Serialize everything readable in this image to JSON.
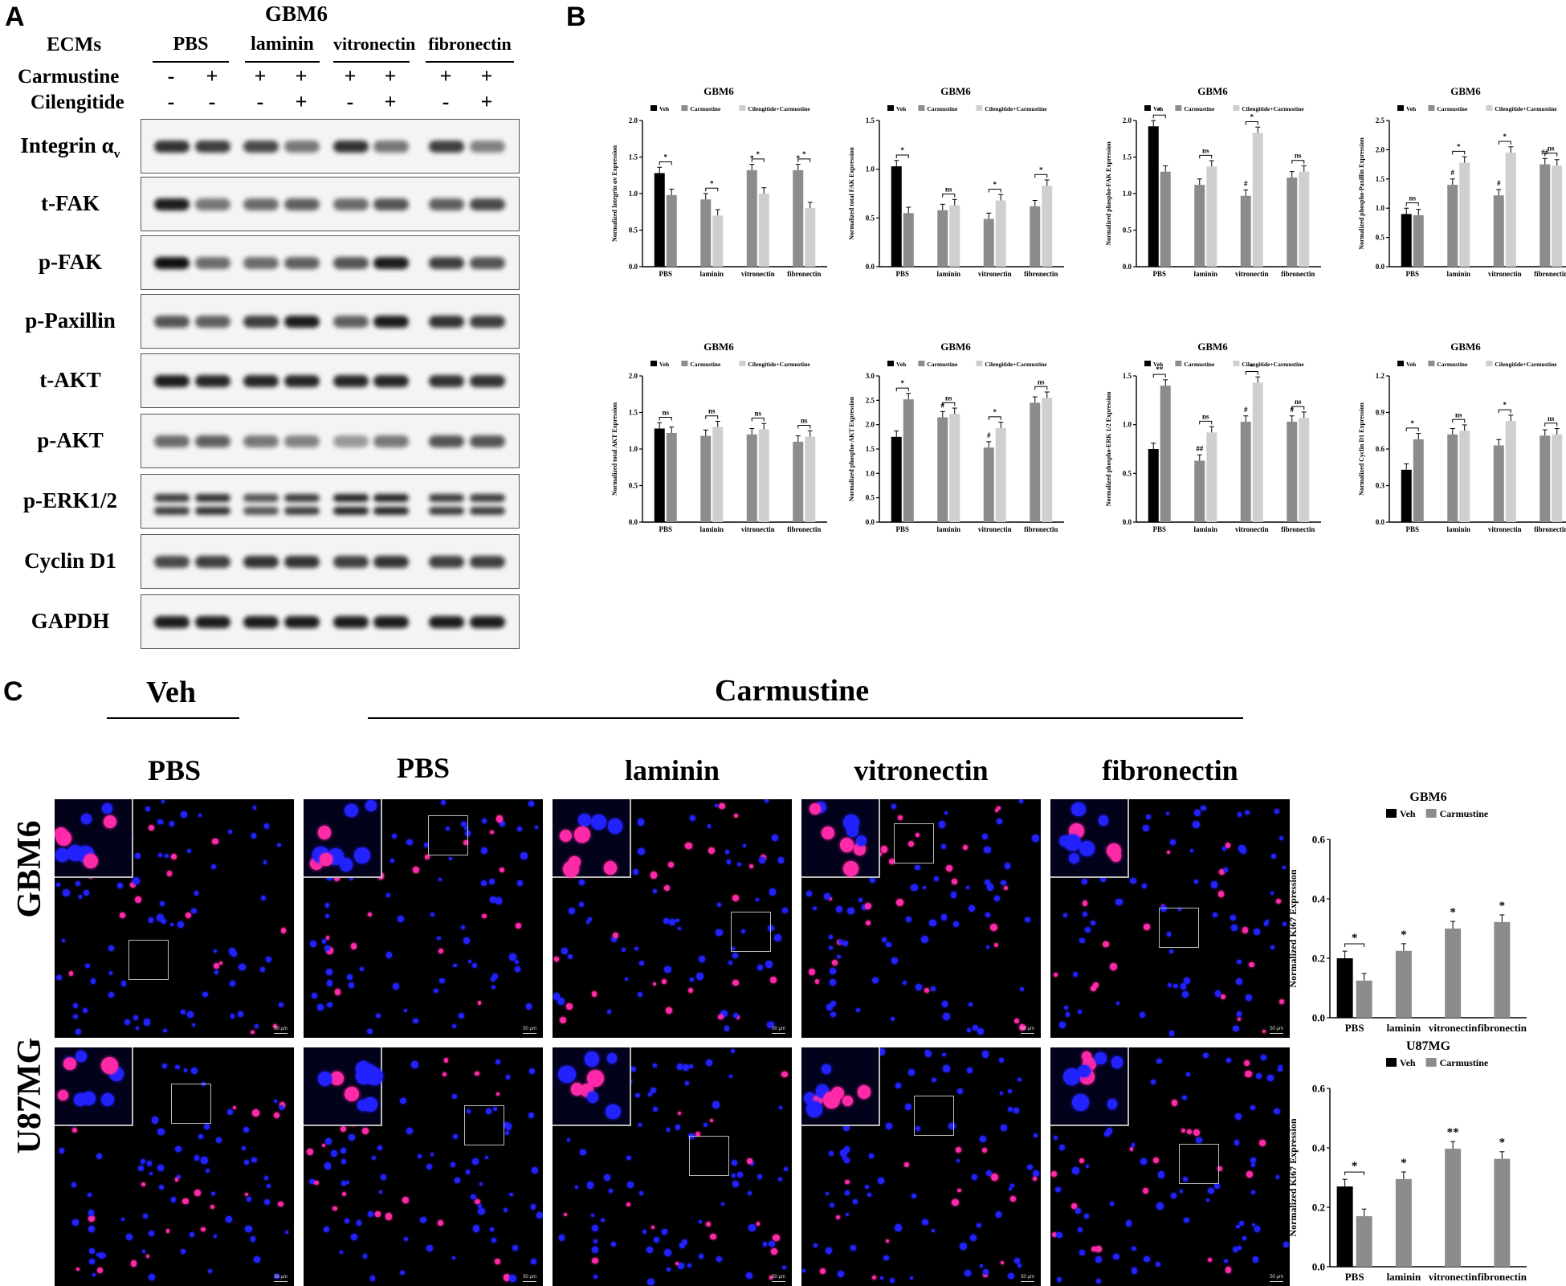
{
  "panels": {
    "a": "A",
    "b": "B",
    "c": "C"
  },
  "western": {
    "title": "GBM6",
    "ecm_label": "ECMs",
    "ecms": [
      "PBS",
      "laminin",
      "vitronectin",
      "fibronectin"
    ],
    "carmustine_label": "Carmustine",
    "carmustine": [
      "-",
      "+",
      "+",
      "+",
      "+",
      "+",
      "+",
      "+"
    ],
    "cilengitide_label": "Cilengitide",
    "cilengitide": [
      "-",
      "-",
      "-",
      "+",
      "-",
      "+",
      "-",
      "+"
    ],
    "rows": [
      {
        "label": "Integrin α",
        "sub": "v",
        "bands": [
          0.85,
          0.8,
          0.75,
          0.55,
          0.85,
          0.55,
          0.8,
          0.5
        ]
      },
      {
        "label": "t-FAK",
        "bands": [
          0.95,
          0.55,
          0.6,
          0.65,
          0.6,
          0.7,
          0.65,
          0.75
        ]
      },
      {
        "label": "p-FAK",
        "bands": [
          1.0,
          0.6,
          0.6,
          0.65,
          0.7,
          0.95,
          0.8,
          0.7
        ]
      },
      {
        "label": "p-Paxillin",
        "bands": [
          0.7,
          0.65,
          0.8,
          0.95,
          0.65,
          0.95,
          0.85,
          0.8
        ]
      },
      {
        "label": "t-AKT",
        "bands": [
          0.95,
          0.9,
          0.9,
          0.9,
          0.9,
          0.9,
          0.85,
          0.85
        ]
      },
      {
        "label": "p-AKT",
        "bands": [
          0.6,
          0.65,
          0.55,
          0.5,
          0.4,
          0.55,
          0.7,
          0.7
        ]
      },
      {
        "label": "p-ERK1/2",
        "bands": [
          0.8,
          0.85,
          0.7,
          0.8,
          0.9,
          0.9,
          0.8,
          0.8
        ]
      },
      {
        "label": "Cyclin D1",
        "bands": [
          0.75,
          0.8,
          0.85,
          0.85,
          0.8,
          0.85,
          0.8,
          0.8
        ]
      },
      {
        "label": "GAPDH",
        "bands": [
          0.95,
          0.95,
          0.95,
          0.95,
          0.95,
          0.95,
          0.95,
          0.95
        ]
      }
    ]
  },
  "chart_data": [
    {
      "type": "bar",
      "title": "GBM6",
      "ylabel": "Normalized Integrin αv Expression",
      "ylim": [
        0,
        2.0
      ],
      "yticks": [
        "0.0",
        "0.5",
        "1.0",
        "1.5",
        "2.0"
      ],
      "categories": [
        "PBS",
        "laminin",
        "vitronectin",
        "fibronectin"
      ],
      "series": [
        {
          "name": "Veh",
          "values": [
            1.28,
            null,
            null,
            null
          ]
        },
        {
          "name": "Carmustine",
          "values": [
            0.98,
            0.92,
            1.32,
            1.32
          ]
        },
        {
          "name": "Cilengitide+Carmustine",
          "values": [
            null,
            0.7,
            1.0,
            0.8
          ]
        }
      ],
      "annotations": [
        {
          "cat": 0,
          "text": "*",
          "from": 0,
          "to": 1
        },
        {
          "cat": 1,
          "text": "*",
          "from": 1,
          "to": 2
        },
        {
          "cat": 2,
          "text": "*",
          "from": 1,
          "to": 2
        },
        {
          "cat": 3,
          "text": "*",
          "from": 1,
          "to": 2
        },
        {
          "cat": 2,
          "text": "*",
          "over": 1
        },
        {
          "cat": 3,
          "text": "*",
          "over": 1
        }
      ]
    },
    {
      "type": "bar",
      "title": "GBM6",
      "ylabel": "Normalized total FAK Expression",
      "ylim": [
        0,
        1.5
      ],
      "yticks": [
        "0.0",
        "0.5",
        "1.0",
        "1.5"
      ],
      "categories": [
        "PBS",
        "laminin",
        "vitronectin",
        "fibronectin"
      ],
      "series": [
        {
          "name": "Veh",
          "values": [
            1.03,
            null,
            null,
            null
          ]
        },
        {
          "name": "Carmustine",
          "values": [
            0.55,
            0.58,
            0.49,
            0.62
          ]
        },
        {
          "name": "Cilengitide+Carmustine",
          "values": [
            null,
            0.63,
            0.68,
            0.83
          ]
        }
      ],
      "annotations": [
        {
          "cat": 0,
          "text": "*",
          "from": 0,
          "to": 1
        },
        {
          "cat": 1,
          "text": "ns",
          "from": 1,
          "to": 2
        },
        {
          "cat": 2,
          "text": "*",
          "from": 1,
          "to": 2
        },
        {
          "cat": 3,
          "text": "*",
          "from": 1,
          "to": 2
        }
      ]
    },
    {
      "type": "bar",
      "title": "GBM6",
      "ylabel": "Normalized phospho-FAK Expression",
      "ylim": [
        0,
        2.0
      ],
      "yticks": [
        "0.0",
        "0.5",
        "1.0",
        "1.5",
        "2.0"
      ],
      "categories": [
        "PBS",
        "laminin",
        "vitronectin",
        "fibronectin"
      ],
      "series": [
        {
          "name": "Veh",
          "values": [
            1.92,
            null,
            null,
            null
          ]
        },
        {
          "name": "Carmustine",
          "values": [
            1.3,
            1.12,
            0.97,
            1.22
          ]
        },
        {
          "name": "Cilengitide+Carmustine",
          "values": [
            null,
            1.37,
            1.83,
            1.3
          ]
        }
      ],
      "annotations": [
        {
          "cat": 0,
          "text": "*",
          "from": 0,
          "to": 1
        },
        {
          "cat": 1,
          "text": "ns",
          "from": 1,
          "to": 2
        },
        {
          "cat": 2,
          "text": "*",
          "from": 1,
          "to": 2
        },
        {
          "cat": 3,
          "text": "ns",
          "from": 1,
          "to": 2
        },
        {
          "cat": 2,
          "text": "#",
          "over": 1
        }
      ]
    },
    {
      "type": "bar",
      "title": "GBM6",
      "ylabel": "Normalized phospho-Paxillin Expression",
      "ylim": [
        0,
        2.5
      ],
      "yticks": [
        "0.0",
        "0.5",
        "1.0",
        "1.5",
        "2.0",
        "2.5"
      ],
      "categories": [
        "PBS",
        "laminin",
        "vitronectin",
        "fibronectin"
      ],
      "series": [
        {
          "name": "Veh",
          "values": [
            0.9,
            null,
            null,
            null
          ]
        },
        {
          "name": "Carmustine",
          "values": [
            0.88,
            1.4,
            1.22,
            1.75
          ]
        },
        {
          "name": "Cilengitide+Carmustine",
          "values": [
            null,
            1.78,
            1.95,
            1.73
          ]
        }
      ],
      "annotations": [
        {
          "cat": 0,
          "text": "ns",
          "from": 0,
          "to": 1
        },
        {
          "cat": 1,
          "text": "*",
          "from": 1,
          "to": 2
        },
        {
          "cat": 2,
          "text": "*",
          "from": 1,
          "to": 2
        },
        {
          "cat": 3,
          "text": "ns",
          "from": 1,
          "to": 2
        },
        {
          "cat": 1,
          "text": "#",
          "over": 1
        },
        {
          "cat": 2,
          "text": "#",
          "over": 1
        },
        {
          "cat": 3,
          "text": "##",
          "over": 1
        }
      ]
    },
    {
      "type": "bar",
      "title": "GBM6",
      "ylabel": "Normalized total AKT Expression",
      "ylim": [
        0,
        2.0
      ],
      "yticks": [
        "0.0",
        "0.5",
        "1.0",
        "1.5",
        "2.0"
      ],
      "categories": [
        "PBS",
        "laminin",
        "vitronectin",
        "fibronectin"
      ],
      "series": [
        {
          "name": "Veh",
          "values": [
            1.28,
            null,
            null,
            null
          ]
        },
        {
          "name": "Carmustine",
          "values": [
            1.22,
            1.18,
            1.2,
            1.1
          ]
        },
        {
          "name": "Cilengitide+Carmustine",
          "values": [
            null,
            1.3,
            1.27,
            1.17
          ]
        }
      ],
      "annotations": [
        {
          "cat": 0,
          "text": "ns",
          "from": 0,
          "to": 1
        },
        {
          "cat": 1,
          "text": "ns",
          "from": 1,
          "to": 2
        },
        {
          "cat": 2,
          "text": "ns",
          "from": 1,
          "to": 2
        },
        {
          "cat": 3,
          "text": "ns",
          "from": 1,
          "to": 2
        }
      ]
    },
    {
      "type": "bar",
      "title": "GBM6",
      "ylabel": "Normalized phospho-AKT Expression",
      "ylim": [
        0,
        3.0
      ],
      "yticks": [
        "0.0",
        "0.5",
        "1.0",
        "1.5",
        "2.0",
        "2.5",
        "3.0"
      ],
      "categories": [
        "PBS",
        "laminin",
        "vitronectin",
        "fibronectin"
      ],
      "series": [
        {
          "name": "Veh",
          "values": [
            1.75,
            null,
            null,
            null
          ]
        },
        {
          "name": "Carmustine",
          "values": [
            2.52,
            2.15,
            1.53,
            2.45
          ]
        },
        {
          "name": "Cilengitide+Carmustine",
          "values": [
            null,
            2.22,
            1.93,
            2.55
          ]
        }
      ],
      "annotations": [
        {
          "cat": 0,
          "text": "*",
          "from": 0,
          "to": 1
        },
        {
          "cat": 1,
          "text": "ns",
          "from": 1,
          "to": 2
        },
        {
          "cat": 2,
          "text": "*",
          "from": 1,
          "to": 2
        },
        {
          "cat": 3,
          "text": "ns",
          "from": 1,
          "to": 2
        },
        {
          "cat": 1,
          "text": "#",
          "over": 1
        },
        {
          "cat": 2,
          "text": "#",
          "over": 1
        }
      ]
    },
    {
      "type": "bar",
      "title": "GBM6",
      "ylabel": "Normalized phospho-ERK 1/2 Expression",
      "ylim": [
        0,
        1.5
      ],
      "yticks": [
        "0.0",
        "0.5",
        "1.0",
        "1.5"
      ],
      "categories": [
        "PBS",
        "laminin",
        "vitronectin",
        "fibronectin"
      ],
      "series": [
        {
          "name": "Veh",
          "values": [
            0.75,
            null,
            null,
            null
          ]
        },
        {
          "name": "Carmustine",
          "values": [
            1.4,
            0.63,
            1.03,
            1.03
          ]
        },
        {
          "name": "Cilengitide+Carmustine",
          "values": [
            null,
            0.92,
            1.43,
            1.07
          ]
        }
      ],
      "annotations": [
        {
          "cat": 0,
          "text": "**",
          "from": 0,
          "to": 1
        },
        {
          "cat": 1,
          "text": "ns",
          "from": 1,
          "to": 2
        },
        {
          "cat": 2,
          "text": "*",
          "from": 1,
          "to": 2
        },
        {
          "cat": 3,
          "text": "ns",
          "from": 1,
          "to": 2
        },
        {
          "cat": 1,
          "text": "##",
          "over": 1
        },
        {
          "cat": 2,
          "text": "#",
          "over": 1
        },
        {
          "cat": 3,
          "text": "#",
          "over": 1
        }
      ]
    },
    {
      "type": "bar",
      "title": "GBM6",
      "ylabel": "Normalized Cyclin D1 Expression",
      "ylim": [
        0,
        1.2
      ],
      "yticks": [
        "0.0",
        "0.3",
        "0.6",
        "0.9",
        "1.2"
      ],
      "categories": [
        "PBS",
        "laminin",
        "vitronectin",
        "fibronectin"
      ],
      "series": [
        {
          "name": "Veh",
          "values": [
            0.43,
            null,
            null,
            null
          ]
        },
        {
          "name": "Carmustine",
          "values": [
            0.68,
            0.72,
            0.63,
            0.71
          ]
        },
        {
          "name": "Cilengitide+Carmustine",
          "values": [
            null,
            0.75,
            0.83,
            0.72
          ]
        }
      ],
      "annotations": [
        {
          "cat": 0,
          "text": "*",
          "from": 0,
          "to": 1
        },
        {
          "cat": 1,
          "text": "ns",
          "from": 1,
          "to": 2
        },
        {
          "cat": 2,
          "text": "*",
          "from": 1,
          "to": 2
        },
        {
          "cat": 3,
          "text": "ns",
          "from": 1,
          "to": 2
        }
      ]
    },
    {
      "type": "bar",
      "title": "GBM6",
      "ylabel": "Normalized  Ki67 Expression",
      "ylim": [
        0,
        0.6
      ],
      "yticks": [
        "0.0",
        "0.2",
        "0.4",
        "0.6"
      ],
      "categories": [
        "PBS",
        "laminin",
        "vitronectin",
        "fibronectin"
      ],
      "series": [
        {
          "name": "Veh",
          "values": [
            0.2,
            null,
            null,
            null
          ]
        },
        {
          "name": "Carmustine",
          "values": [
            0.125,
            0.225,
            0.3,
            0.322
          ]
        }
      ],
      "annotations": [
        {
          "cat": 0,
          "text": "*",
          "from": 0,
          "to": 1
        },
        {
          "cat": 1,
          "text": "*",
          "over": 1
        },
        {
          "cat": 2,
          "text": "*",
          "over": 1
        },
        {
          "cat": 3,
          "text": "*",
          "over": 1
        }
      ]
    },
    {
      "type": "bar",
      "title": "U87MG",
      "ylabel": "Normalized  Ki67 Expression",
      "ylim": [
        0,
        0.6
      ],
      "yticks": [
        "0.0",
        "0.2",
        "0.4",
        "0.6"
      ],
      "categories": [
        "PBS",
        "laminin",
        "vitronectin",
        "fibronectin"
      ],
      "series": [
        {
          "name": "Veh",
          "values": [
            0.27,
            null,
            null,
            null
          ]
        },
        {
          "name": "Carmustine",
          "values": [
            0.17,
            0.295,
            0.397,
            0.363
          ]
        }
      ],
      "annotations": [
        {
          "cat": 0,
          "text": "*",
          "from": 0,
          "to": 1
        },
        {
          "cat": 1,
          "text": "*",
          "over": 1
        },
        {
          "cat": 2,
          "text": "**",
          "over": 1
        },
        {
          "cat": 3,
          "text": "*",
          "over": 1
        }
      ]
    }
  ],
  "series_colors": {
    "Veh": "#000000",
    "Carmustine": "#8c8c8c",
    "Cilengitide+Carmustine": "#cfcfcf"
  },
  "micro": {
    "veh_label": "Veh",
    "carmustine_label": "Carmustine",
    "columns": [
      "PBS",
      "PBS",
      "laminin",
      "vitronectin",
      "fibronectin"
    ],
    "rows": [
      "GBM6",
      "U87MG"
    ],
    "scale_label": "50 μm",
    "nucleus_color": "#2222ff",
    "ki67_color": "#ff2aa8"
  }
}
